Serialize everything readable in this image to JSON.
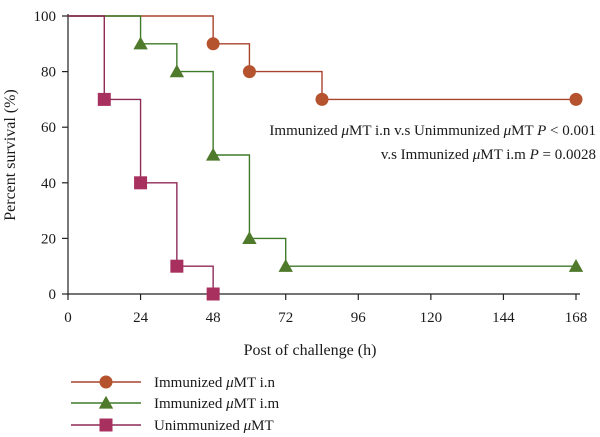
{
  "chart_data": {
    "type": "line",
    "style": "step",
    "xlabel": "Post of challenge (h)",
    "ylabel": "Percent survival (%)",
    "x_ticks": [
      "0",
      "24",
      "48",
      "72",
      "96",
      "120",
      "144",
      "168"
    ],
    "y_ticks": [
      "0",
      "20",
      "40",
      "60",
      "80",
      "100"
    ],
    "xlim": [
      0,
      168
    ],
    "ylim": [
      0,
      100
    ],
    "grid": false,
    "legend_position": "bottom-left",
    "annotations": [
      {
        "prefix": "Immunized ",
        "mu": "μ",
        "mid": "MT i.n v.s Unimmunized ",
        "mu2": "μ",
        "mid2": "MT ",
        "p": "P",
        "suffix": " < 0.001"
      },
      {
        "prefix": "v.s Immunized ",
        "mu": "μ",
        "mid": "MT i.m ",
        "p": "P",
        "suffix": " = 0.0028"
      }
    ],
    "series": [
      {
        "name": "Immunized μMT i.n",
        "name_parts": {
          "pre": "Immunized ",
          "mu": "μ",
          "post": "MT i.n"
        },
        "marker": "circle",
        "color": "#b5532f",
        "line_color": "#a8432e",
        "x": [
          0,
          48,
          60,
          84,
          168
        ],
        "y": [
          100,
          90,
          80,
          70,
          70
        ],
        "markers_x": [
          48,
          60,
          84,
          168
        ],
        "markers_y": [
          90,
          80,
          70,
          70
        ]
      },
      {
        "name": "Immunized μMT i.m",
        "name_parts": {
          "pre": "Immunized ",
          "mu": "μ",
          "post": "MT i.m"
        },
        "marker": "triangle",
        "color": "#4f7a2b",
        "line_color": "#3f7a2a",
        "x": [
          0,
          24,
          36,
          48,
          60,
          72,
          168
        ],
        "y": [
          100,
          90,
          80,
          50,
          20,
          10,
          10
        ],
        "markers_x": [
          24,
          36,
          48,
          60,
          72,
          168
        ],
        "markers_y": [
          90,
          80,
          50,
          20,
          10,
          10
        ]
      },
      {
        "name": "Unimmunized μMT",
        "name_parts": {
          "pre": "Unimmunized ",
          "mu": "μ",
          "post": "MT"
        },
        "marker": "square",
        "color": "#a8305e",
        "line_color": "#8f2a57",
        "x": [
          0,
          12,
          24,
          36,
          48
        ],
        "y": [
          100,
          70,
          40,
          10,
          0
        ],
        "markers_x": [
          12,
          24,
          36,
          48
        ],
        "markers_y": [
          70,
          40,
          10,
          0
        ]
      }
    ]
  }
}
